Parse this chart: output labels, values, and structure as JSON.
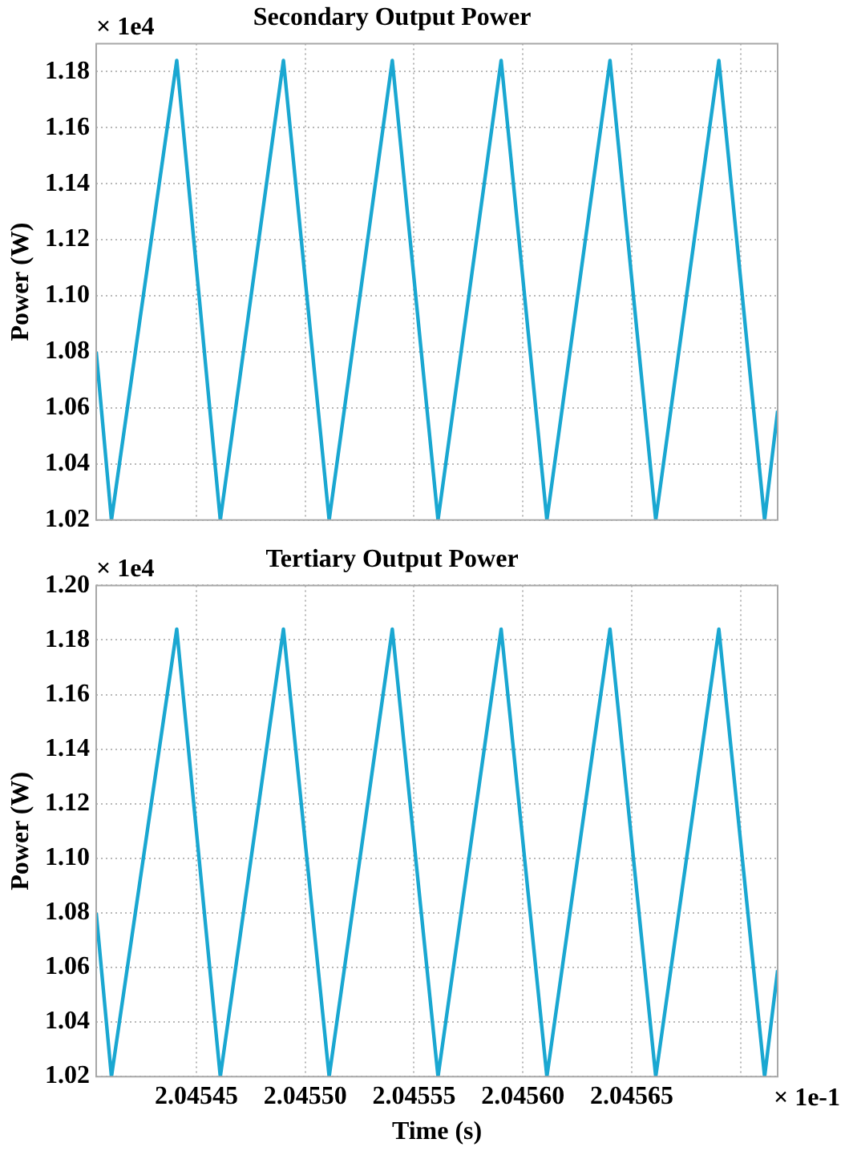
{
  "chart_data": [
    {
      "type": "line",
      "title": "Secondary Output Power",
      "ylabel": "Power (W)",
      "annotations": [
        "× 1e4"
      ],
      "x": [
        2.045404,
        2.045411,
        2.045441,
        2.045461,
        2.04549,
        2.045511,
        2.04554,
        2.045561,
        2.04559,
        2.045611,
        2.04564,
        2.045661,
        2.04569,
        2.045711,
        2.045717
      ],
      "series": [
        {
          "color": "#1aa7d1",
          "values": [
            1.08,
            1.02,
            1.184,
            1.02,
            1.184,
            1.02,
            1.184,
            1.02,
            1.184,
            1.02,
            1.184,
            1.02,
            1.184,
            1.02,
            1.059
          ]
        }
      ],
      "xlim": [
        2.045404,
        2.045717
      ],
      "xticks": [
        {
          "value": 2.04545,
          "label": null
        },
        {
          "value": 2.0455,
          "label": null
        },
        {
          "value": 2.04555,
          "label": null
        },
        {
          "value": 2.0456,
          "label": null
        },
        {
          "value": 2.04565,
          "label": null
        },
        {
          "value": 2.0457,
          "label": null
        }
      ],
      "ylim": [
        1.02,
        1.19
      ],
      "yticks": [
        {
          "value": 1.02,
          "label": "1.02"
        },
        {
          "value": 1.04,
          "label": "1.04"
        },
        {
          "value": 1.06,
          "label": "1.06"
        },
        {
          "value": 1.08,
          "label": "1.08"
        },
        {
          "value": 1.1,
          "label": "1.10"
        },
        {
          "value": 1.12,
          "label": "1.12"
        },
        {
          "value": 1.14,
          "label": "1.14"
        },
        {
          "value": 1.16,
          "label": "1.16"
        },
        {
          "value": 1.18,
          "label": "1.18"
        }
      ],
      "tick_labels": "y",
      "grid": true,
      "legend": false,
      "marker": "none",
      "line_style": "solid"
    },
    {
      "type": "line",
      "title": "Tertiary Output Power",
      "xlabel": "Time (s)",
      "ylabel": "Power (W)",
      "annotations": [
        "× 1e4",
        "× 1e-1"
      ],
      "x": [
        2.045404,
        2.045411,
        2.045441,
        2.045461,
        2.04549,
        2.045511,
        2.04554,
        2.045561,
        2.04559,
        2.045611,
        2.04564,
        2.045661,
        2.04569,
        2.045711,
        2.045717
      ],
      "series": [
        {
          "color": "#1aa7d1",
          "values": [
            1.08,
            1.02,
            1.184,
            1.02,
            1.184,
            1.02,
            1.184,
            1.02,
            1.184,
            1.02,
            1.184,
            1.02,
            1.184,
            1.02,
            1.059
          ]
        }
      ],
      "xlim": [
        2.045404,
        2.045717
      ],
      "xticks": [
        {
          "value": 2.04545,
          "label": "2.04545"
        },
        {
          "value": 2.0455,
          "label": "2.04550"
        },
        {
          "value": 2.04555,
          "label": "2.04555"
        },
        {
          "value": 2.0456,
          "label": "2.04560"
        },
        {
          "value": 2.04565,
          "label": "2.04565"
        },
        {
          "value": 2.0457,
          "label": null
        }
      ],
      "ylim": [
        1.02,
        1.2
      ],
      "yticks": [
        {
          "value": 1.02,
          "label": "1.02"
        },
        {
          "value": 1.04,
          "label": "1.04"
        },
        {
          "value": 1.06,
          "label": "1.06"
        },
        {
          "value": 1.08,
          "label": "1.08"
        },
        {
          "value": 1.1,
          "label": "1.10"
        },
        {
          "value": 1.12,
          "label": "1.12"
        },
        {
          "value": 1.14,
          "label": "1.14"
        },
        {
          "value": 1.16,
          "label": "1.16"
        },
        {
          "value": 1.18,
          "label": "1.18"
        },
        {
          "value": 1.2,
          "label": "1.20"
        }
      ],
      "grid": true,
      "legend": false,
      "marker": "none",
      "line_style": "solid"
    }
  ]
}
